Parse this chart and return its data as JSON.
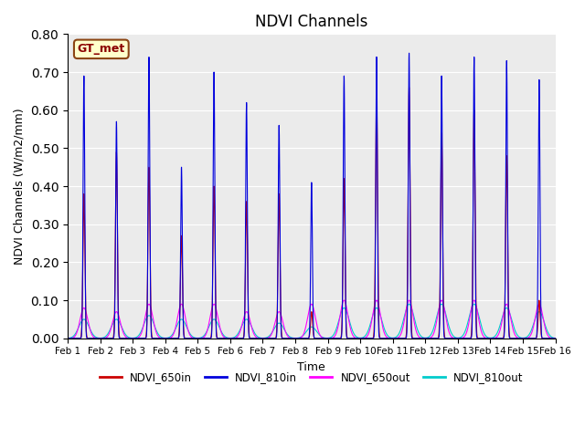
{
  "title": "NDVI Channels",
  "xlabel": "Time",
  "ylabel": "NDVI Channels (W/m2/mm)",
  "xlim_days": 15,
  "ylim": [
    0.0,
    0.8
  ],
  "yticks": [
    0.0,
    0.1,
    0.2,
    0.3,
    0.4,
    0.5,
    0.6,
    0.7,
    0.8
  ],
  "xtick_labels": [
    "Feb 1",
    "Feb 2",
    "Feb 3",
    "Feb 4",
    "Feb 5",
    "Feb 6",
    "Feb 7",
    "Feb 8",
    "Feb 9",
    "Feb 10",
    "Feb 11",
    "Feb 12",
    "Feb 13",
    "Feb 14",
    "Feb 15",
    "Feb 16"
  ],
  "legend_label": "GT_met",
  "series": {
    "NDVI_650in": {
      "color": "#cc0000",
      "lw": 0.8
    },
    "NDVI_810in": {
      "color": "#0000dd",
      "lw": 0.8
    },
    "NDVI_650out": {
      "color": "#ff00ff",
      "lw": 0.8
    },
    "NDVI_810out": {
      "color": "#00cccc",
      "lw": 0.8
    }
  },
  "legend_entries": [
    "NDVI_650in",
    "NDVI_810in",
    "NDVI_650out",
    "NDVI_810out"
  ],
  "legend_colors": [
    "#cc0000",
    "#0000dd",
    "#ff00ff",
    "#00cccc"
  ],
  "bg_color": "#ebebeb",
  "spike_peaks_810in": [
    0.69,
    0.57,
    0.74,
    0.45,
    0.7,
    0.62,
    0.56,
    0.41,
    0.69,
    0.74,
    0.75,
    0.69,
    0.74,
    0.73,
    0.68
  ],
  "spike_peaks_650in": [
    0.38,
    0.49,
    0.45,
    0.27,
    0.4,
    0.36,
    0.38,
    0.07,
    0.42,
    0.65,
    0.66,
    0.54,
    0.6,
    0.48,
    0.1
  ],
  "spike_peaks_650out": [
    0.08,
    0.07,
    0.09,
    0.09,
    0.09,
    0.07,
    0.07,
    0.09,
    0.1,
    0.1,
    0.1,
    0.1,
    0.1,
    0.09,
    0.09
  ],
  "spike_peaks_810out": [
    0.05,
    0.05,
    0.06,
    0.05,
    0.05,
    0.05,
    0.04,
    0.03,
    0.08,
    0.08,
    0.09,
    0.09,
    0.09,
    0.08,
    0.07
  ],
  "n_points": 10000
}
